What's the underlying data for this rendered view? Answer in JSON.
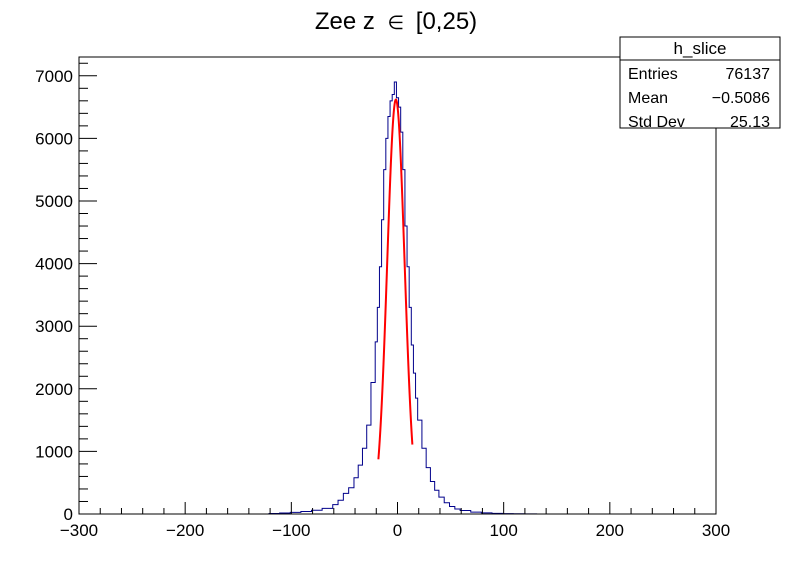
{
  "chart_data": {
    "type": "histogram",
    "title_text": "Zee z",
    "title_symbol": "∈",
    "title_range": "[0,25)",
    "xlabel": "",
    "ylabel": "",
    "xlim": [
      -300,
      300
    ],
    "ylim": [
      0,
      7300
    ],
    "x_ticks": [
      -300,
      -200,
      -100,
      0,
      100,
      200,
      300
    ],
    "x_tick_labels": [
      "−300",
      "−200",
      "−100",
      "0",
      "100",
      "200",
      "300"
    ],
    "y_ticks": [
      0,
      1000,
      2000,
      3000,
      4000,
      5000,
      6000,
      7000
    ],
    "y_tick_labels": [
      "0",
      "1000",
      "2000",
      "3000",
      "4000",
      "5000",
      "6000",
      "7000"
    ],
    "histogram": {
      "name": "h_slice",
      "color": "#00008b",
      "bin_width": 2,
      "bin_centers": [
        -120,
        -110,
        -100,
        -90,
        -80,
        -70,
        -60,
        -55,
        -50,
        -45,
        -40,
        -36,
        -32,
        -28,
        -24,
        -20,
        -18,
        -16,
        -14,
        -12,
        -10,
        -8,
        -6,
        -4,
        -2,
        0,
        2,
        4,
        6,
        8,
        10,
        12,
        14,
        16,
        18,
        20,
        24,
        28,
        32,
        36,
        40,
        45,
        50,
        55,
        60,
        70,
        80,
        90,
        100,
        110,
        120,
        130
      ],
      "bin_values": [
        8,
        15,
        25,
        40,
        60,
        90,
        150,
        220,
        330,
        420,
        580,
        780,
        1050,
        1420,
        2100,
        2750,
        3300,
        3950,
        4700,
        5500,
        6000,
        6350,
        6600,
        6700,
        6900,
        6650,
        6500,
        6100,
        5500,
        4600,
        3950,
        3300,
        2700,
        2250,
        1850,
        1500,
        1050,
        740,
        520,
        380,
        270,
        180,
        120,
        80,
        55,
        30,
        18,
        10,
        6,
        4,
        2,
        1
      ]
    },
    "fit": {
      "type": "gaussian",
      "color": "#ff0000",
      "range": [
        -18,
        14
      ],
      "amplitude": 6620,
      "mean": -1.5,
      "sigma": 8.2
    },
    "stats_box": {
      "title": "h_slice",
      "rows": [
        {
          "label": "Entries",
          "value": "76137"
        },
        {
          "label": "Mean",
          "value": "−0.5086"
        },
        {
          "label": "Std Dev",
          "value": "25.13"
        }
      ]
    }
  }
}
